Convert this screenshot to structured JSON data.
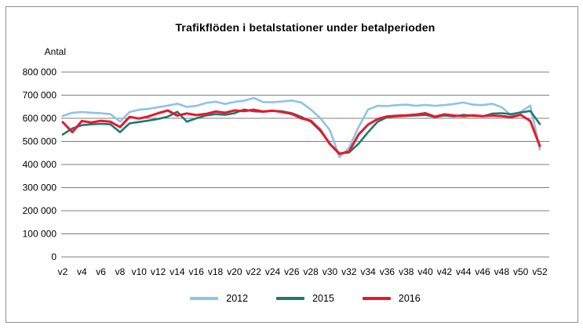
{
  "title": "Trafikflöden i betalstationer under betalperioden",
  "chart_data": {
    "type": "line",
    "title": "Trafikflöden i betalstationer under betalperioden",
    "ylabel": "Antal",
    "xlabel": "",
    "ylim": [
      0,
      800000
    ],
    "y_tick_step": 100000,
    "y_tick_labels": [
      "0",
      "100 000",
      "200 000",
      "300 000",
      "400 000",
      "500 000",
      "600 000",
      "700 000",
      "800 000"
    ],
    "x_axis_labeled_ticks": [
      "v2",
      "v4",
      "v6",
      "v8",
      "v10",
      "v12",
      "v14",
      "v16",
      "v18",
      "v20",
      "v22",
      "v24",
      "v26",
      "v28",
      "v30",
      "v32",
      "v34",
      "v36",
      "v38",
      "v40",
      "v42",
      "v44",
      "v46",
      "v48",
      "v50",
      "v52"
    ],
    "categories": [
      "v2",
      "v3",
      "v4",
      "v5",
      "v6",
      "v7",
      "v8",
      "v9",
      "v10",
      "v11",
      "v12",
      "v13",
      "v14",
      "v15",
      "v16",
      "v17",
      "v18",
      "v19",
      "v20",
      "v21",
      "v22",
      "v23",
      "v24",
      "v25",
      "v26",
      "v27",
      "v28",
      "v29",
      "v30",
      "v31",
      "v32",
      "v33",
      "v34",
      "v35",
      "v36",
      "v37",
      "v38",
      "v39",
      "v40",
      "v41",
      "v42",
      "v43",
      "v44",
      "v45",
      "v46",
      "v47",
      "v48",
      "v49",
      "v50",
      "v51",
      "v52"
    ],
    "grid": "horizontal",
    "grid_color": "#7f7f7f",
    "legend_position": "bottom",
    "series": [
      {
        "name": "2012",
        "color": "#8DC3E8",
        "values": [
          610000,
          624000,
          627000,
          624000,
          622000,
          618000,
          585000,
          627000,
          637000,
          641000,
          648000,
          655000,
          663000,
          649000,
          654000,
          666000,
          672000,
          662000,
          671000,
          676000,
          688000,
          670000,
          669000,
          673000,
          677000,
          668000,
          638000,
          600000,
          548000,
          432000,
          472000,
          562000,
          638000,
          654000,
          653000,
          657000,
          659000,
          654000,
          658000,
          654000,
          657000,
          662000,
          668000,
          659000,
          657000,
          663000,
          648000,
          612000,
          628000,
          655000,
          465000
        ]
      },
      {
        "name": "2015",
        "color": "#1D7874",
        "values": [
          530000,
          556000,
          570000,
          574000,
          576000,
          574000,
          540000,
          578000,
          584000,
          590000,
          597000,
          607000,
          628000,
          585000,
          600000,
          612000,
          618000,
          615000,
          622000,
          638000,
          630000,
          628000,
          632000,
          630000,
          622000,
          606000,
          585000,
          545000,
          490000,
          448000,
          452000,
          490000,
          540000,
          585000,
          605000,
          608000,
          610000,
          612000,
          615000,
          605000,
          612000,
          608000,
          615000,
          610000,
          608000,
          620000,
          622000,
          618000,
          625000,
          632000,
          575000
        ]
      },
      {
        "name": "2016",
        "color": "#E8182C",
        "values": [
          583000,
          540000,
          588000,
          582000,
          589000,
          585000,
          562000,
          606000,
          599000,
          608000,
          622000,
          634000,
          612000,
          621000,
          614000,
          619000,
          629000,
          624000,
          634000,
          631000,
          637000,
          629000,
          633000,
          627000,
          619000,
          600000,
          589000,
          550000,
          488000,
          446000,
          456000,
          530000,
          573000,
          597000,
          608000,
          611000,
          613000,
          616000,
          622000,
          607000,
          617000,
          612000,
          609000,
          613000,
          609000,
          612000,
          609000,
          605000,
          615000,
          588000,
          480000
        ]
      }
    ]
  }
}
